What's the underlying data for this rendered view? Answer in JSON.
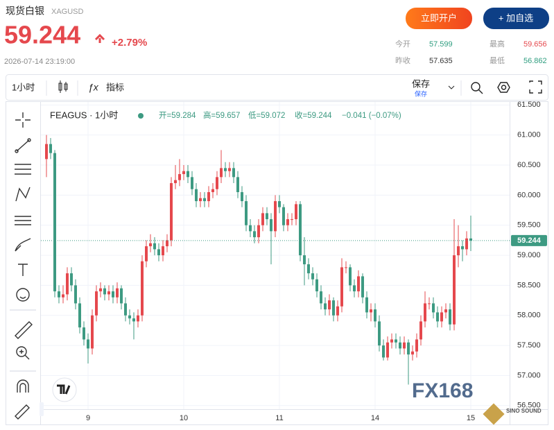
{
  "header": {
    "name": "现货白银",
    "symbol": "XAGUSD",
    "price": "59.244",
    "change": "+2.79%",
    "time": "2026-07-14 23:19:00",
    "open_account": "立即开户",
    "add_watch": "+ 加自选",
    "quotes": [
      {
        "label": "今开",
        "value": "57.599"
      },
      {
        "label": "最高",
        "value": "59.656"
      },
      {
        "label": "昨收",
        "value": "57.635"
      },
      {
        "label": "最低",
        "value": "56.862"
      }
    ]
  },
  "toolbar": {
    "interval": "1小时",
    "indicators": "指标",
    "save": "保存",
    "save_sub": "保存"
  },
  "watermark": {
    "logo": "FX168",
    "badge": "SINO SOUND"
  },
  "chart_data": {
    "type": "candlestick",
    "symbol": "FEAGUS · 1小时",
    "legend": {
      "open": "开=59.284",
      "high": "高=59.657",
      "low": "低=59.072",
      "close": "收=59.244",
      "change": "−0.041 (−0.07%)"
    },
    "up_color": "#e5484d",
    "down_color": "#3d9a82",
    "categories": [
      null,
      null,
      null,
      null,
      null,
      null,
      null,
      null,
      null,
      null,
      "9",
      null,
      null,
      null,
      null,
      null,
      null,
      null,
      null,
      null,
      null,
      null,
      null,
      null,
      null,
      null,
      null,
      null,
      null,
      null,
      null,
      null,
      null,
      "10",
      null,
      null,
      null,
      null,
      null,
      null,
      null,
      null,
      null,
      null,
      null,
      null,
      null,
      null,
      null,
      null,
      null,
      null,
      null,
      null,
      null,
      null,
      "11",
      null,
      null,
      null,
      null,
      null,
      null,
      null,
      null,
      null,
      null,
      null,
      null,
      null,
      null,
      null,
      null,
      null,
      null,
      null,
      null,
      null,
      null,
      "14",
      null,
      null,
      null,
      null,
      null,
      null,
      null,
      null,
      null,
      null,
      null,
      null,
      null,
      null,
      null,
      null,
      null,
      null,
      null,
      null,
      null,
      null,
      "15"
    ],
    "open": [
      60.6,
      60.85,
      60.7,
      58.4,
      58.3,
      58.35,
      58.7,
      58.5,
      58.2,
      57.8,
      57.6,
      57.45,
      58.0,
      58.4,
      58.45,
      58.35,
      58.4,
      58.3,
      58.45,
      58.2,
      58.0,
      57.95,
      57.9,
      58.0,
      58.9,
      59.15,
      59.2,
      59.1,
      59.0,
      59.15,
      59.25,
      60.2,
      60.25,
      60.35,
      60.4,
      60.3,
      60.1,
      59.9,
      59.95,
      59.9,
      60.05,
      60.1,
      60.3,
      60.45,
      60.4,
      60.45,
      60.3,
      60.05,
      59.9,
      59.5,
      59.4,
      59.3,
      59.5,
      59.7,
      59.6,
      59.4,
      59.9,
      59.8,
      59.5,
      59.6,
      59.6,
      59.85,
      59.0,
      58.85,
      58.7,
      58.6,
      58.4,
      58.2,
      58.1,
      58.25,
      58.0,
      58.15,
      58.8,
      58.8,
      58.5,
      58.4,
      58.65,
      58.3,
      58.05,
      58.1,
      57.9,
      57.5,
      57.3,
      57.55,
      57.6,
      57.55,
      57.45,
      57.55,
      57.35,
      57.4,
      57.6,
      57.9,
      58.2,
      58.2,
      58.05,
      57.9,
      58.05,
      58.1,
      57.85,
      59.0,
      59.15,
      59.1,
      59.28
    ],
    "high": [
      61.0,
      60.95,
      60.75,
      58.5,
      58.5,
      58.8,
      58.8,
      58.6,
      58.3,
      57.9,
      57.7,
      58.1,
      58.5,
      58.55,
      58.5,
      58.5,
      58.5,
      58.55,
      58.5,
      58.3,
      58.1,
      58.05,
      58.1,
      59.0,
      59.25,
      59.35,
      59.3,
      59.2,
      59.25,
      59.35,
      60.3,
      60.5,
      60.6,
      60.5,
      60.5,
      60.4,
      60.2,
      60.05,
      60.05,
      60.15,
      60.2,
      60.4,
      60.75,
      60.55,
      60.55,
      60.55,
      60.4,
      60.15,
      60.0,
      59.6,
      59.5,
      59.6,
      59.8,
      59.8,
      59.7,
      60.0,
      60.0,
      59.85,
      59.7,
      59.7,
      59.9,
      59.9,
      59.3,
      58.95,
      58.8,
      58.7,
      58.5,
      58.3,
      58.35,
      58.3,
      58.25,
      58.95,
      58.9,
      58.85,
      58.6,
      58.75,
      58.7,
      58.4,
      58.2,
      58.2,
      58.0,
      57.6,
      57.65,
      57.7,
      57.7,
      57.65,
      57.65,
      57.6,
      57.5,
      57.7,
      58.0,
      58.4,
      58.3,
      58.3,
      58.15,
      58.15,
      58.2,
      58.2,
      59.6,
      59.5,
      59.25,
      59.4,
      59.66
    ],
    "low": [
      60.3,
      60.6,
      58.3,
      58.2,
      58.2,
      58.25,
      58.4,
      58.1,
      57.7,
      57.5,
      57.2,
      57.35,
      57.9,
      58.3,
      58.25,
      58.25,
      58.2,
      58.2,
      58.1,
      57.9,
      57.85,
      57.6,
      57.8,
      57.9,
      58.8,
      59.05,
      59.0,
      58.9,
      58.9,
      59.05,
      59.15,
      60.1,
      60.15,
      60.25,
      60.2,
      60.0,
      59.8,
      59.8,
      59.8,
      59.8,
      59.95,
      60.0,
      60.2,
      60.3,
      60.3,
      60.2,
      59.95,
      59.8,
      59.4,
      59.3,
      59.2,
      59.2,
      59.4,
      59.5,
      58.85,
      59.3,
      59.7,
      59.4,
      59.4,
      59.5,
      59.5,
      58.9,
      58.5,
      58.6,
      58.5,
      58.3,
      58.1,
      58.0,
      58.0,
      57.9,
      57.9,
      58.05,
      58.7,
      58.4,
      58.3,
      58.3,
      58.2,
      57.95,
      57.9,
      57.8,
      57.4,
      57.25,
      57.25,
      57.45,
      57.45,
      57.35,
      57.35,
      56.85,
      57.25,
      57.3,
      57.5,
      57.8,
      58.1,
      57.95,
      57.8,
      57.8,
      57.95,
      57.75,
      57.75,
      58.8,
      58.9,
      59.0,
      59.07
    ],
    "close": [
      60.85,
      60.7,
      58.4,
      58.3,
      58.35,
      58.7,
      58.5,
      58.2,
      57.8,
      57.6,
      57.45,
      58.0,
      58.4,
      58.45,
      58.35,
      58.4,
      58.3,
      58.45,
      58.2,
      58.0,
      57.95,
      57.9,
      58.0,
      58.9,
      59.15,
      59.2,
      59.1,
      59.0,
      59.15,
      59.25,
      60.2,
      60.25,
      60.35,
      60.4,
      60.3,
      60.1,
      59.9,
      59.95,
      59.9,
      60.05,
      60.1,
      60.3,
      60.45,
      60.4,
      60.45,
      60.3,
      60.05,
      59.9,
      59.5,
      59.4,
      59.3,
      59.5,
      59.7,
      59.6,
      59.4,
      59.9,
      59.8,
      59.5,
      59.6,
      59.6,
      59.85,
      59.0,
      58.85,
      58.7,
      58.6,
      58.4,
      58.2,
      58.1,
      58.25,
      58.0,
      58.15,
      58.8,
      58.8,
      58.5,
      58.4,
      58.65,
      58.3,
      58.05,
      58.1,
      57.9,
      57.5,
      57.3,
      57.55,
      57.6,
      57.55,
      57.45,
      57.55,
      57.35,
      57.4,
      57.6,
      57.9,
      58.2,
      58.2,
      58.05,
      57.9,
      58.05,
      58.1,
      57.85,
      59.0,
      59.15,
      59.1,
      59.28,
      59.244
    ],
    "ylim": [
      56.44,
      61.55
    ],
    "yticks": [
      {
        "value": 56.5,
        "label": "56.500"
      },
      {
        "value": 57,
        "label": "57.000"
      },
      {
        "value": 57.5,
        "label": "57.500"
      },
      {
        "value": 58,
        "label": "58.000"
      },
      {
        "value": 58.5,
        "label": "58.500"
      },
      {
        "value": 59,
        "label": "59.000"
      },
      {
        "value": 59.5,
        "label": "59.500"
      },
      {
        "value": 60,
        "label": "60.000"
      },
      {
        "value": 60.5,
        "label": "60.500"
      },
      {
        "value": 61,
        "label": "61.000"
      },
      {
        "value": 61.5,
        "label": "61.500"
      }
    ],
    "grid": true
  }
}
